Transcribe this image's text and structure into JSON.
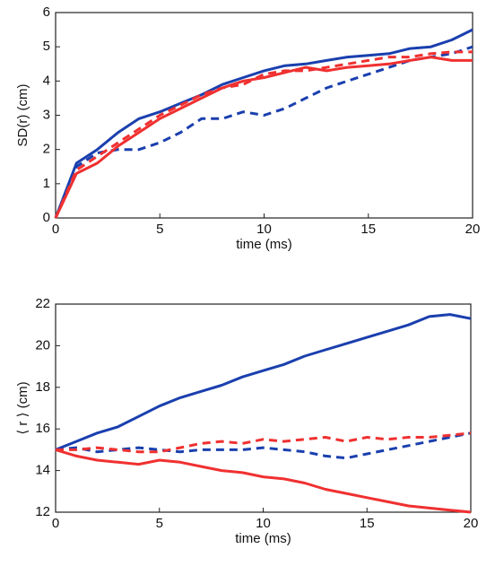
{
  "chart_data": [
    {
      "type": "line",
      "xlabel": "time (ms)",
      "ylabel": "SD(r) (cm)",
      "x": [
        0,
        1,
        2,
        3,
        4,
        5,
        6,
        7,
        8,
        9,
        10,
        11,
        12,
        13,
        14,
        15,
        16,
        17,
        18,
        19,
        20
      ],
      "xlim": [
        0,
        20
      ],
      "xticks": [
        0,
        5,
        10,
        15,
        20
      ],
      "ylim": [
        0,
        6
      ],
      "yticks": [
        0,
        1,
        2,
        3,
        4,
        5,
        6
      ],
      "series": [
        {
          "color": "#1a3fae",
          "dashed": false,
          "values": [
            0,
            1.6,
            2.0,
            2.5,
            2.9,
            3.1,
            3.35,
            3.6,
            3.9,
            4.1,
            4.3,
            4.45,
            4.5,
            4.6,
            4.7,
            4.75,
            4.8,
            4.95,
            5.0,
            5.2,
            5.5
          ]
        },
        {
          "color": "#1a3fae",
          "dashed": true,
          "values": [
            0,
            1.5,
            1.9,
            2.0,
            2.0,
            2.2,
            2.5,
            2.9,
            2.9,
            3.1,
            3.0,
            3.2,
            3.5,
            3.8,
            4.0,
            4.2,
            4.4,
            4.6,
            4.7,
            4.8,
            5.0
          ]
        },
        {
          "color": "#f03030",
          "dashed": false,
          "values": [
            0,
            1.3,
            1.6,
            2.1,
            2.5,
            2.9,
            3.2,
            3.5,
            3.8,
            4.0,
            4.1,
            4.25,
            4.4,
            4.3,
            4.4,
            4.45,
            4.5,
            4.6,
            4.7,
            4.6,
            4.6
          ]
        },
        {
          "color": "#f03030",
          "dashed": true,
          "values": [
            0,
            1.4,
            1.8,
            2.2,
            2.6,
            3.0,
            3.3,
            3.6,
            3.8,
            3.9,
            4.2,
            4.3,
            4.3,
            4.4,
            4.5,
            4.6,
            4.7,
            4.7,
            4.8,
            4.85,
            4.85
          ]
        }
      ]
    },
    {
      "type": "line",
      "xlabel": "time (ms)",
      "ylabel": "⟨ r ⟩ (cm)",
      "x": [
        0,
        1,
        2,
        3,
        4,
        5,
        6,
        7,
        8,
        9,
        10,
        11,
        12,
        13,
        14,
        15,
        16,
        17,
        18,
        19,
        20
      ],
      "xlim": [
        0,
        20
      ],
      "xticks": [
        0,
        5,
        10,
        15,
        20
      ],
      "ylim": [
        12,
        22
      ],
      "yticks": [
        12,
        14,
        16,
        18,
        20,
        22
      ],
      "series": [
        {
          "color": "#1a3fae",
          "dashed": false,
          "values": [
            15,
            15.4,
            15.8,
            16.1,
            16.6,
            17.1,
            17.5,
            17.8,
            18.1,
            18.5,
            18.8,
            19.1,
            19.5,
            19.8,
            20.1,
            20.4,
            20.7,
            21.0,
            21.4,
            21.5,
            21.3
          ]
        },
        {
          "color": "#1a3fae",
          "dashed": true,
          "values": [
            15,
            15.1,
            14.9,
            15.0,
            15.1,
            15.0,
            14.9,
            15.0,
            15.0,
            15.0,
            15.1,
            15.0,
            14.9,
            14.7,
            14.6,
            14.8,
            15.0,
            15.2,
            15.4,
            15.6,
            15.8
          ]
        },
        {
          "color": "#f03030",
          "dashed": false,
          "values": [
            15,
            14.7,
            14.5,
            14.4,
            14.3,
            14.5,
            14.4,
            14.2,
            14.0,
            13.9,
            13.7,
            13.6,
            13.4,
            13.1,
            12.9,
            12.7,
            12.5,
            12.3,
            12.2,
            12.1,
            12.0
          ]
        },
        {
          "color": "#f03030",
          "dashed": true,
          "values": [
            15,
            15.0,
            15.1,
            15.0,
            14.9,
            14.9,
            15.1,
            15.3,
            15.4,
            15.3,
            15.5,
            15.4,
            15.5,
            15.6,
            15.4,
            15.6,
            15.5,
            15.6,
            15.6,
            15.7,
            15.8
          ]
        }
      ]
    }
  ]
}
